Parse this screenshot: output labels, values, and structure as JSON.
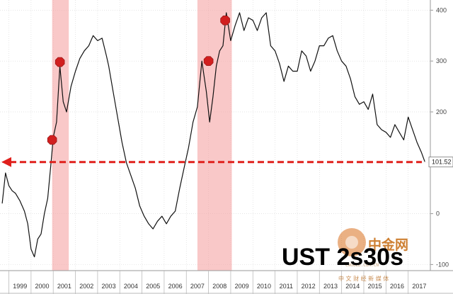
{
  "chart_data": {
    "type": "line",
    "title": "UST 2s30s",
    "xlabel": "",
    "ylabel": "",
    "xlim": [
      1998.6,
      2018.0
    ],
    "ylim": [
      -112,
      420
    ],
    "x_ticks": [
      "1999",
      "2000",
      "2001",
      "2002",
      "2003",
      "2004",
      "2005",
      "2006",
      "2007",
      "2008",
      "2009",
      "2010",
      "2011",
      "2012",
      "2013",
      "2014",
      "2015",
      "2016",
      "2017"
    ],
    "y_ticks": [
      {
        "value": 400,
        "label": "400"
      },
      {
        "value": 300,
        "label": "300"
      },
      {
        "value": 200,
        "label": "200"
      },
      {
        "value": 100,
        "label": ""
      },
      {
        "value": 0,
        "label": "0"
      },
      {
        "value": -100,
        "label": "-100"
      }
    ],
    "grid": true,
    "last_value_label": "101.52",
    "reference_line": {
      "value": 101.5,
      "style": "dashed-arrow",
      "color": "#e0201c"
    },
    "shaded_periods": [
      {
        "start": 2000.95,
        "end": 2001.7
      },
      {
        "start": 2007.5,
        "end": 2009.05
      }
    ],
    "markers": [
      {
        "x": 2000.95,
        "y": 145
      },
      {
        "x": 2001.3,
        "y": 298
      },
      {
        "x": 2008.0,
        "y": 300
      },
      {
        "x": 2008.75,
        "y": 380
      }
    ],
    "series": [
      {
        "x": [
          1998.7,
          1998.85,
          1999.0,
          1999.15,
          1999.3,
          1999.5,
          1999.7,
          1999.85,
          2000.0,
          2000.15,
          2000.3,
          2000.45,
          2000.6,
          2000.75,
          2000.9,
          2001.0,
          2001.15,
          2001.3,
          2001.45,
          2001.6,
          2001.8,
          2002.0,
          2002.2,
          2002.4,
          2002.6,
          2002.8,
          2003.0,
          2003.2,
          2003.4,
          2003.5,
          2003.7,
          2003.9,
          2004.1,
          2004.3,
          2004.5,
          2004.7,
          2004.9,
          2005.1,
          2005.3,
          2005.5,
          2005.7,
          2005.9,
          2006.1,
          2006.3,
          2006.5,
          2006.7,
          2006.9,
          2007.1,
          2007.3,
          2007.5,
          2007.7,
          2007.9,
          2008.05,
          2008.2,
          2008.35,
          2008.5,
          2008.65,
          2008.8,
          2009.0,
          2009.2,
          2009.4,
          2009.6,
          2009.8,
          2010.0,
          2010.2,
          2010.4,
          2010.6,
          2010.8,
          2011.0,
          2011.2,
          2011.4,
          2011.6,
          2011.8,
          2012.0,
          2012.2,
          2012.4,
          2012.6,
          2012.8,
          2013.0,
          2013.2,
          2013.4,
          2013.6,
          2013.8,
          2014.0,
          2014.2,
          2014.4,
          2014.6,
          2014.8,
          2015.0,
          2015.2,
          2015.4,
          2015.6,
          2015.8,
          2016.0,
          2016.2,
          2016.4,
          2016.6,
          2016.8,
          2017.0,
          2017.2,
          2017.4,
          2017.6,
          2017.75
        ],
        "y": [
          20,
          80,
          55,
          45,
          40,
          25,
          5,
          -20,
          -70,
          -85,
          -50,
          -40,
          0,
          30,
          100,
          150,
          180,
          290,
          220,
          200,
          250,
          280,
          305,
          320,
          330,
          350,
          340,
          345,
          310,
          290,
          240,
          190,
          140,
          100,
          75,
          50,
          15,
          -5,
          -20,
          -30,
          -15,
          -5,
          -20,
          -5,
          5,
          50,
          90,
          130,
          180,
          210,
          300,
          240,
          180,
          230,
          290,
          320,
          330,
          395,
          340,
          370,
          395,
          360,
          385,
          380,
          360,
          385,
          395,
          330,
          320,
          295,
          260,
          290,
          280,
          280,
          320,
          310,
          280,
          300,
          330,
          330,
          345,
          350,
          320,
          300,
          290,
          265,
          230,
          215,
          220,
          205,
          235,
          175,
          165,
          160,
          150,
          175,
          160,
          145,
          190,
          165,
          140,
          120,
          102
        ]
      }
    ]
  }
}
